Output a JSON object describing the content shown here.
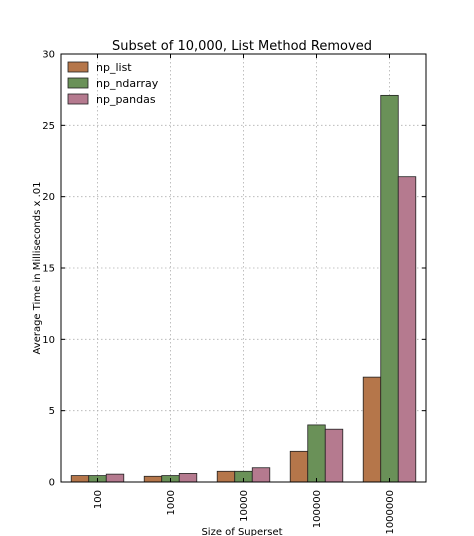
{
  "chart_data": {
    "type": "bar",
    "title": "Subset of 10,000, List Method Removed",
    "xlabel": "Size of Superset",
    "ylabel": "Average Time in Milliseconds x .01",
    "categories": [
      "100",
      "1000",
      "10000",
      "100000",
      "1000000"
    ],
    "ylim": [
      0,
      30
    ],
    "yticks": [
      "0",
      "5",
      "10",
      "15",
      "20",
      "25",
      "30"
    ],
    "grid": true,
    "legend_position": "top-left",
    "series": [
      {
        "name": "np_list",
        "color": "#b5764a",
        "values": [
          0.45,
          0.4,
          0.75,
          2.15,
          7.35
        ]
      },
      {
        "name": "np_ndarray",
        "color": "#6a9158",
        "values": [
          0.45,
          0.45,
          0.75,
          4.0,
          27.1
        ]
      },
      {
        "name": "np_pandas",
        "color": "#b57a8f",
        "values": [
          0.55,
          0.6,
          1.0,
          3.7,
          21.4
        ]
      }
    ]
  }
}
